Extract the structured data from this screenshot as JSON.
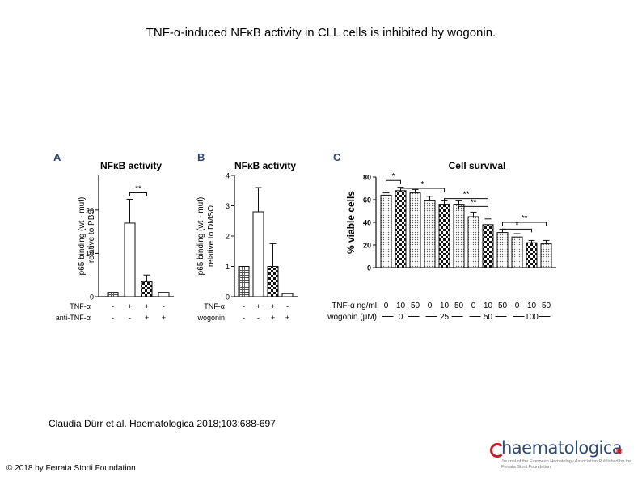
{
  "title": "TNF-α-induced NFκB activity in CLL cells is inhibited by wogonin.",
  "citation": "Claudia Dürr et al. Haematologica 2018;103:688-697",
  "copyright": "© 2018 by Ferrata Storti Foundation",
  "logo": {
    "name": "haematologica",
    "tagline": "Journal of the European Hematology Association Published by the Ferrata Storti Foundation"
  },
  "colors": {
    "bar_stroke": "#111111",
    "text": "#000000",
    "logo_blue": "#2d4a75",
    "logo_red": "#c0202a"
  },
  "chart_data": [
    {
      "panel": "A",
      "type": "bar",
      "title": "NFκB activity",
      "ylabel": "p65 binding (wt - mut) relative to PBS",
      "ylim": [
        0,
        28
      ],
      "yticks": [
        0,
        10,
        20
      ],
      "values": [
        1,
        17,
        3.5,
        1
      ],
      "errors": [
        0,
        5.5,
        1.5,
        0
      ],
      "patterns": [
        "grid",
        "open",
        "checker",
        "open"
      ],
      "rows": [
        {
          "label": "TNF-α",
          "values": [
            "-",
            "+",
            "+",
            "-"
          ]
        },
        {
          "label": "anti-TNF-α",
          "values": [
            "-",
            "-",
            "+",
            "+"
          ]
        }
      ],
      "annotations": [
        {
          "text": "**",
          "from": 1,
          "to": 2
        }
      ]
    },
    {
      "panel": "B",
      "type": "bar",
      "title": "NFκB activity",
      "ylabel": "p65 binding (wt - mut) relative to DMSO",
      "ylim": [
        0,
        4
      ],
      "yticks": [
        0,
        1,
        2,
        3,
        4
      ],
      "values": [
        1,
        2.8,
        1,
        0.1
      ],
      "errors": [
        0,
        0.8,
        0.75,
        0
      ],
      "patterns": [
        "grid",
        "open",
        "checker",
        "open"
      ],
      "rows": [
        {
          "label": "TNF-α",
          "values": [
            "-",
            "+",
            "+",
            "-"
          ]
        },
        {
          "label": "wogonin",
          "values": [
            "-",
            "-",
            "+",
            "+"
          ]
        }
      ],
      "annotations": []
    },
    {
      "panel": "C",
      "type": "bar",
      "title": "Cell survival",
      "ylabel": "% viable cells",
      "ylim": [
        0,
        80
      ],
      "yticks": [
        0,
        20,
        40,
        60,
        80
      ],
      "row1_label": "TNF-α ng/ml",
      "row2_label": "wogonin (μM)",
      "tnf": [
        "0",
        "10",
        "50",
        "0",
        "10",
        "50",
        "0",
        "10",
        "50",
        "0",
        "10",
        "50"
      ],
      "wogonin_groups": [
        "0",
        "25",
        "50",
        "100"
      ],
      "values": [
        64,
        68,
        66,
        59,
        56,
        56,
        45,
        38,
        31,
        27,
        22,
        21
      ],
      "errors": [
        2,
        3,
        3,
        4,
        3,
        3,
        4,
        5,
        3,
        3,
        2,
        3
      ],
      "patterns": [
        "dots",
        "checker",
        "dots",
        "dots",
        "checker",
        "dots",
        "dots",
        "checker",
        "dots",
        "dots",
        "checker",
        "dots"
      ],
      "annotations": [
        {
          "text": "*",
          "from": 0,
          "to": 1,
          "level": 77
        },
        {
          "text": "*",
          "from": 1,
          "to": 4,
          "level": 70
        },
        {
          "text": "**",
          "from": 4,
          "to": 7,
          "level": 61
        },
        {
          "text": "**",
          "from": 5,
          "to": 7,
          "level": 54
        },
        {
          "text": "*",
          "from": 8,
          "to": 10,
          "level": 34
        },
        {
          "text": "**",
          "from": 8,
          "to": 11,
          "level": 40
        }
      ]
    }
  ]
}
